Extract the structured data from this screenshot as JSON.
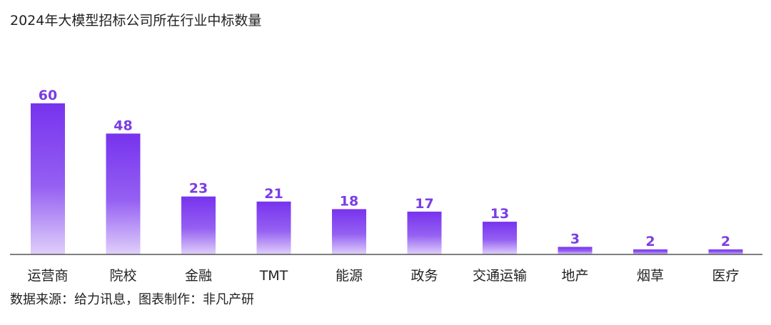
{
  "title": "2024年大模型招标公司所在行业中标数量",
  "source": "数据来源：给力讯息，图表制作：非凡产研",
  "chart_data": {
    "type": "bar",
    "title": "2024年大模型招标公司所在行业中标数量",
    "xlabel": "",
    "ylabel": "",
    "ylim": [
      0,
      60
    ],
    "grid": false,
    "legend": "none",
    "categories": [
      "运营商",
      "院校",
      "金融",
      "TMT",
      "能源",
      "政务",
      "交通运输",
      "地产",
      "烟草",
      "医疗"
    ],
    "values": [
      60,
      48,
      23,
      21,
      18,
      17,
      13,
      3,
      2,
      2
    ],
    "data_labels": [
      "60",
      "48",
      "23",
      "21",
      "18",
      "17",
      "13",
      "3",
      "2",
      "2"
    ],
    "colors": {
      "bar_top": "#7733ee",
      "bar_bottom": "#e0d0fa",
      "label": "#7a3de6",
      "axis": "#555555",
      "tick_text": "#222222"
    }
  }
}
